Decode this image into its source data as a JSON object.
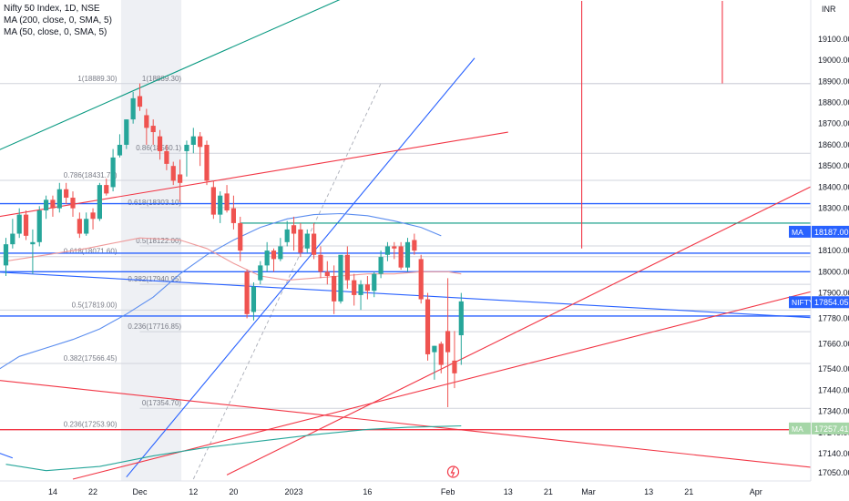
{
  "legend": {
    "symbol": "Nifty 50 Index, 1D, NSE",
    "ma200": "MA (200, close, 0, SMA, 5)",
    "ma50": "MA (50, close, 0, SMA, 5)"
  },
  "colors": {
    "up": "#26a69a",
    "down": "#ef5350",
    "blue": "#2962ff",
    "red": "#f23645",
    "green": "#089981",
    "ma": "#5b8def",
    "fib": "#d1d4dc"
  },
  "chart_data": {
    "type": "candlestick",
    "currency": "INR",
    "ylim": [
      17020,
      19280
    ],
    "y_ticks": [
      17050,
      17140,
      17240,
      17340,
      17440,
      17540,
      17660,
      17780,
      17900,
      18000,
      18100,
      18200,
      18300,
      18400,
      18500,
      18600,
      18700,
      18800,
      18900,
      19000,
      19100
    ],
    "y_tick_labels": [
      "17050.00",
      "17140.00",
      "17240.00",
      "17340.00",
      "17440.00",
      "17540.00",
      "17660.00",
      "17780.00",
      "17900.00",
      "18000.00",
      "18100.00",
      "18200.00",
      "18300.00",
      "18400.00",
      "18500.00",
      "18600.00",
      "18700.00",
      "18800.00",
      "18900.00",
      "19000.00",
      "19100.00"
    ],
    "x_ticks": [
      {
        "label": "14",
        "i": 7
      },
      {
        "label": "22",
        "i": 13
      },
      {
        "label": "Dec",
        "i": 20
      },
      {
        "label": "12",
        "i": 28
      },
      {
        "label": "20",
        "i": 34
      },
      {
        "label": "2023",
        "i": 43
      },
      {
        "label": "16",
        "i": 54
      },
      {
        "label": "Feb",
        "i": 66
      },
      {
        "label": "13",
        "i": 75
      },
      {
        "label": "21",
        "i": 81
      },
      {
        "label": "Mar",
        "i": 87
      },
      {
        "label": "13",
        "i": 96
      },
      {
        "label": "21",
        "i": 102
      },
      {
        "label": "Apr",
        "i": 112
      }
    ],
    "candles": [
      {
        "i": 0,
        "o": 18030,
        "h": 18160,
        "l": 17980,
        "c": 18130
      },
      {
        "i": 1,
        "o": 18130,
        "h": 18250,
        "l": 18110,
        "c": 18180
      },
      {
        "i": 2,
        "o": 18180,
        "h": 18300,
        "l": 18160,
        "c": 18270
      },
      {
        "i": 3,
        "o": 18270,
        "h": 18290,
        "l": 18150,
        "c": 18170
      },
      {
        "i": 4,
        "o": 18130,
        "h": 18200,
        "l": 17990,
        "c": 18140
      },
      {
        "i": 5,
        "o": 18140,
        "h": 18310,
        "l": 18120,
        "c": 18290
      },
      {
        "i": 6,
        "o": 18290,
        "h": 18360,
        "l": 18250,
        "c": 18340
      },
      {
        "i": 7,
        "o": 18340,
        "h": 18360,
        "l": 18260,
        "c": 18300
      },
      {
        "i": 8,
        "o": 18300,
        "h": 18420,
        "l": 18280,
        "c": 18390
      },
      {
        "i": 9,
        "o": 18390,
        "h": 18420,
        "l": 18320,
        "c": 18350
      },
      {
        "i": 10,
        "o": 18350,
        "h": 18380,
        "l": 18260,
        "c": 18300
      },
      {
        "i": 11,
        "o": 18250,
        "h": 18280,
        "l": 18160,
        "c": 18180
      },
      {
        "i": 12,
        "o": 18180,
        "h": 18280,
        "l": 18170,
        "c": 18250
      },
      {
        "i": 13,
        "o": 18280,
        "h": 18300,
        "l": 18200,
        "c": 18250
      },
      {
        "i": 14,
        "o": 18250,
        "h": 18420,
        "l": 18240,
        "c": 18410
      },
      {
        "i": 15,
        "o": 18410,
        "h": 18440,
        "l": 18360,
        "c": 18370
      },
      {
        "i": 16,
        "o": 18400,
        "h": 18580,
        "l": 18380,
        "c": 18540
      },
      {
        "i": 17,
        "o": 18550,
        "h": 18650,
        "l": 18540,
        "c": 18600
      },
      {
        "i": 18,
        "o": 18600,
        "h": 18720,
        "l": 18580,
        "c": 18720
      },
      {
        "i": 19,
        "o": 18720,
        "h": 18850,
        "l": 18700,
        "c": 18820
      },
      {
        "i": 20,
        "o": 18830,
        "h": 18890,
        "l": 18760,
        "c": 18780
      },
      {
        "i": 21,
        "o": 18740,
        "h": 18770,
        "l": 18600,
        "c": 18680
      },
      {
        "i": 22,
        "o": 18690,
        "h": 18720,
        "l": 18600,
        "c": 18660
      },
      {
        "i": 23,
        "o": 18640,
        "h": 18670,
        "l": 18530,
        "c": 18570
      },
      {
        "i": 24,
        "o": 18570,
        "h": 18600,
        "l": 18480,
        "c": 18510
      },
      {
        "i": 25,
        "o": 18500,
        "h": 18520,
        "l": 18410,
        "c": 18430
      },
      {
        "i": 26,
        "o": 18460,
        "h": 18530,
        "l": 18330,
        "c": 18420
      },
      {
        "i": 27,
        "o": 18570,
        "h": 18620,
        "l": 18450,
        "c": 18600
      },
      {
        "i": 28,
        "o": 18600,
        "h": 18680,
        "l": 18560,
        "c": 18640
      },
      {
        "i": 29,
        "o": 18640,
        "h": 18660,
        "l": 18500,
        "c": 18590
      },
      {
        "i": 30,
        "o": 18600,
        "h": 18620,
        "l": 18410,
        "c": 18430
      },
      {
        "i": 31,
        "o": 18400,
        "h": 18430,
        "l": 18250,
        "c": 18270
      },
      {
        "i": 32,
        "o": 18270,
        "h": 18380,
        "l": 18230,
        "c": 18360
      },
      {
        "i": 33,
        "o": 18370,
        "h": 18410,
        "l": 18280,
        "c": 18290
      },
      {
        "i": 34,
        "o": 18300,
        "h": 18360,
        "l": 18200,
        "c": 18230
      },
      {
        "i": 35,
        "o": 18230,
        "h": 18260,
        "l": 18050,
        "c": 18100
      },
      {
        "i": 36,
        "o": 18000,
        "h": 18010,
        "l": 17780,
        "c": 17800
      },
      {
        "i": 37,
        "o": 17810,
        "h": 17950,
        "l": 17770,
        "c": 17930
      },
      {
        "i": 38,
        "o": 17960,
        "h": 18050,
        "l": 17940,
        "c": 18030
      },
      {
        "i": 39,
        "o": 18030,
        "h": 18140,
        "l": 18000,
        "c": 18100
      },
      {
        "i": 40,
        "o": 18100,
        "h": 18110,
        "l": 18000,
        "c": 18060
      },
      {
        "i": 41,
        "o": 18060,
        "h": 18160,
        "l": 18050,
        "c": 18120
      },
      {
        "i": 42,
        "o": 18140,
        "h": 18240,
        "l": 18120,
        "c": 18200
      },
      {
        "i": 43,
        "o": 18220,
        "h": 18260,
        "l": 18100,
        "c": 18180
      },
      {
        "i": 44,
        "o": 18200,
        "h": 18230,
        "l": 18070,
        "c": 18090
      },
      {
        "i": 45,
        "o": 18110,
        "h": 18200,
        "l": 18090,
        "c": 18180
      },
      {
        "i": 46,
        "o": 18180,
        "h": 18230,
        "l": 18060,
        "c": 18080
      },
      {
        "i": 47,
        "o": 18080,
        "h": 18120,
        "l": 17970,
        "c": 18000
      },
      {
        "i": 48,
        "o": 18000,
        "h": 18050,
        "l": 17940,
        "c": 17980
      },
      {
        "i": 49,
        "o": 17980,
        "h": 18030,
        "l": 17800,
        "c": 17860
      },
      {
        "i": 50,
        "o": 17860,
        "h": 18070,
        "l": 17850,
        "c": 18080
      },
      {
        "i": 51,
        "o": 18080,
        "h": 18120,
        "l": 17920,
        "c": 17960
      },
      {
        "i": 52,
        "o": 17960,
        "h": 17990,
        "l": 17840,
        "c": 17890
      },
      {
        "i": 53,
        "o": 17890,
        "h": 17960,
        "l": 17820,
        "c": 17940
      },
      {
        "i": 54,
        "o": 17940,
        "h": 17980,
        "l": 17870,
        "c": 17910
      },
      {
        "i": 55,
        "o": 17910,
        "h": 18000,
        "l": 17880,
        "c": 17990
      },
      {
        "i": 56,
        "o": 17990,
        "h": 18100,
        "l": 17970,
        "c": 18070
      },
      {
        "i": 57,
        "o": 18080,
        "h": 18140,
        "l": 18050,
        "c": 18120
      },
      {
        "i": 58,
        "o": 18120,
        "h": 18140,
        "l": 18060,
        "c": 18110
      },
      {
        "i": 59,
        "o": 18120,
        "h": 18140,
        "l": 18010,
        "c": 18020
      },
      {
        "i": 60,
        "o": 18020,
        "h": 18160,
        "l": 18000,
        "c": 18140
      },
      {
        "i": 61,
        "o": 18150,
        "h": 18180,
        "l": 18080,
        "c": 18100
      },
      {
        "i": 62,
        "o": 18060,
        "h": 18080,
        "l": 17850,
        "c": 17870
      },
      {
        "i": 63,
        "o": 17870,
        "h": 17900,
        "l": 17580,
        "c": 17610
      },
      {
        "i": 64,
        "o": 17620,
        "h": 17650,
        "l": 17490,
        "c": 17650
      },
      {
        "i": 65,
        "o": 17660,
        "h": 17670,
        "l": 17520,
        "c": 17560
      },
      {
        "i": 66,
        "o": 17720,
        "h": 17970,
        "l": 17360,
        "c": 17620
      },
      {
        "i": 67,
        "o": 17580,
        "h": 17720,
        "l": 17450,
        "c": 17520
      },
      {
        "i": 68,
        "o": 17700,
        "h": 17900,
        "l": 17560,
        "c": 17860
      }
    ],
    "ma_short": [
      {
        "i": 0,
        "v": 18050
      },
      {
        "i": 6,
        "v": 18080
      },
      {
        "i": 12,
        "v": 18110
      },
      {
        "i": 20,
        "v": 18160
      },
      {
        "i": 26,
        "v": 18150
      },
      {
        "i": 30,
        "v": 18110
      },
      {
        "i": 34,
        "v": 18040
      },
      {
        "i": 38,
        "v": 17980
      },
      {
        "i": 42,
        "v": 17960
      },
      {
        "i": 46,
        "v": 17970
      },
      {
        "i": 50,
        "v": 17980
      },
      {
        "i": 54,
        "v": 17990
      },
      {
        "i": 58,
        "v": 17990
      },
      {
        "i": 62,
        "v": 18000
      },
      {
        "i": 66,
        "v": 18000
      },
      {
        "i": 68,
        "v": 17990
      }
    ],
    "ma_long": [
      {
        "i": 0,
        "v": 17090
      },
      {
        "i": 6,
        "v": 17060
      },
      {
        "i": 14,
        "v": 17080
      },
      {
        "i": 22,
        "v": 17130
      },
      {
        "i": 30,
        "v": 17170
      },
      {
        "i": 38,
        "v": 17200
      },
      {
        "i": 46,
        "v": 17230
      },
      {
        "i": 54,
        "v": 17255
      },
      {
        "i": 60,
        "v": 17265
      },
      {
        "i": 66,
        "v": 17270
      },
      {
        "i": 68,
        "v": 17272
      }
    ],
    "ma_mid": [
      {
        "i": -2,
        "v": 17520
      },
      {
        "i": 2,
        "v": 17600
      },
      {
        "i": 6,
        "v": 17640
      },
      {
        "i": 10,
        "v": 17680
      },
      {
        "i": 14,
        "v": 17730
      },
      {
        "i": 18,
        "v": 17800
      },
      {
        "i": 22,
        "v": 17880
      },
      {
        "i": 26,
        "v": 17990
      },
      {
        "i": 30,
        "v": 18080
      },
      {
        "i": 34,
        "v": 18150
      },
      {
        "i": 38,
        "v": 18210
      },
      {
        "i": 42,
        "v": 18250
      },
      {
        "i": 46,
        "v": 18270
      },
      {
        "i": 50,
        "v": 18275
      },
      {
        "i": 54,
        "v": 18265
      },
      {
        "i": 58,
        "v": 18240
      },
      {
        "i": 62,
        "v": 18210
      },
      {
        "i": 65,
        "v": 18170
      }
    ],
    "fib_levels": [
      {
        "label": "1(18889.30)",
        "v": 18889.3
      },
      {
        "label": "0.786(18431.70)",
        "v": 18431.7
      },
      {
        "label": "0.618(18071.60)",
        "v": 18071.6
      },
      {
        "label": "0.5(17819.00)",
        "v": 17819.0
      },
      {
        "label": "0.382(17566.45)",
        "v": 17566.45
      },
      {
        "label": "0.236(17253.90)",
        "v": 17253.9
      }
    ],
    "fib_levels_2": [
      {
        "label": "1(18889.30)",
        "v": 18889.3
      },
      {
        "label": "0.86(18560.1)",
        "v": 18560.1
      },
      {
        "label": "0.618(18303.10)",
        "v": 18303.1
      },
      {
        "label": "0.5(18122.00)",
        "v": 18122.0
      },
      {
        "label": "0.382(17940.95)",
        "v": 17940.95
      },
      {
        "label": "0.236(17716.85)",
        "v": 17716.85
      },
      {
        "label": "0(17354.70)",
        "v": 17354.7
      }
    ],
    "h_lines": [
      {
        "v": 18322,
        "color": "blue"
      },
      {
        "v": 18088,
        "color": "blue"
      },
      {
        "v": 18000,
        "color": "blue"
      },
      {
        "v": 17791,
        "color": "blue"
      },
      {
        "v": 17254,
        "color": "red"
      }
    ],
    "trend_lines": [
      {
        "i1": -5,
        "v1": 18520,
        "i2": 53,
        "v2": 19330,
        "color": "green"
      },
      {
        "i1": 18,
        "v1": 17030,
        "i2": 70,
        "v2": 19010,
        "color": "blue"
      },
      {
        "i1": -5,
        "v1": 18240,
        "i2": 75,
        "v2": 18660,
        "color": "red"
      },
      {
        "i1": -2,
        "v1": 18000,
        "i2": 122,
        "v2": 17780,
        "color": "blue"
      },
      {
        "i1": -5,
        "v1": 17500,
        "i2": 122,
        "v2": 17070,
        "color": "red"
      },
      {
        "i1": 10,
        "v1": 17020,
        "i2": 122,
        "v2": 17920,
        "color": "red"
      },
      {
        "i1": 33,
        "v1": 17040,
        "i2": 122,
        "v2": 18430,
        "color": "red"
      },
      {
        "i1": 35,
        "v1": 18230,
        "i2": 122,
        "v2": 18230,
        "color": "green"
      },
      {
        "i1": -5,
        "v1": 17190,
        "i2": 1,
        "v2": 17120,
        "color": "blue"
      }
    ],
    "verticals": [
      {
        "i": 86,
        "v1": 19280,
        "v2": 18110,
        "color": "red"
      },
      {
        "i": 107,
        "v1": 19280,
        "v2": 18890,
        "color": "red"
      }
    ],
    "last_price": {
      "label": "NIFTY",
      "value": "17854.05",
      "v": 17854.05
    },
    "ma_tag": {
      "label": "MA",
      "value": "18187.00",
      "v": 18187
    },
    "ma_tag2": {
      "label": "MA",
      "value": "17257.41",
      "v": 17257.41
    }
  }
}
